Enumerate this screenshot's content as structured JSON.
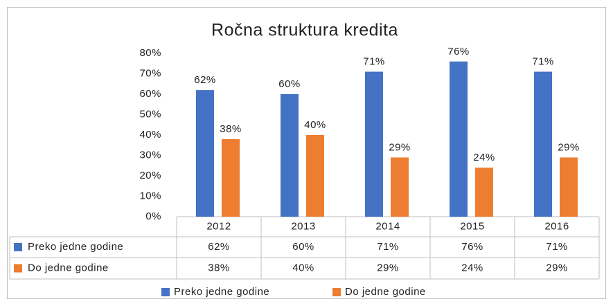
{
  "chart_data": {
    "type": "bar",
    "title": "Ročna struktura kredita",
    "categories": [
      "2012",
      "2013",
      "2014",
      "2015",
      "2016"
    ],
    "series": [
      {
        "name": "Preko jedne godine",
        "color": "#4472c4",
        "values": [
          62,
          60,
          71,
          76,
          71
        ],
        "value_labels": [
          "62%",
          "60%",
          "71%",
          "76%",
          "71%"
        ]
      },
      {
        "name": "Do jedne godine",
        "color": "#ed7d31",
        "values": [
          38,
          40,
          29,
          24,
          29
        ],
        "value_labels": [
          "38%",
          "40%",
          "29%",
          "24%",
          "29%"
        ]
      }
    ],
    "ylim": [
      0,
      80
    ],
    "yticks": [
      {
        "value": 0,
        "label": "0%"
      },
      {
        "value": 10,
        "label": "10%"
      },
      {
        "value": 20,
        "label": "20%"
      },
      {
        "value": 30,
        "label": "30%"
      },
      {
        "value": 40,
        "label": "40%"
      },
      {
        "value": 50,
        "label": "50%"
      },
      {
        "value": 60,
        "label": "60%"
      },
      {
        "value": 70,
        "label": "70%"
      },
      {
        "value": 80,
        "label": "80%"
      }
    ],
    "grid": false,
    "legend": "bottom",
    "data_table": true
  }
}
